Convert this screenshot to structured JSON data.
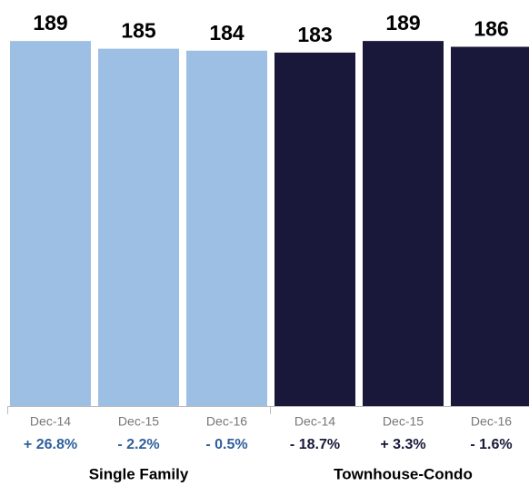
{
  "chart_data": {
    "type": "bar",
    "categories": [
      "Dec-14",
      "Dec-15",
      "Dec-16"
    ],
    "ylim": [
      0,
      190
    ],
    "series": [
      {
        "name": "Single Family",
        "color": "#9dbfe4",
        "values": [
          189,
          185,
          184
        ],
        "changes": [
          "+ 26.8%",
          "- 2.2%",
          "- 0.5%"
        ],
        "change_color": "#2d5f9c"
      },
      {
        "name": "Townhouse-Condo",
        "color": "#19183a",
        "values": [
          183,
          189,
          186
        ],
        "changes": [
          "- 18.7%",
          "+ 3.3%",
          "- 1.6%"
        ],
        "change_color": "#19183a"
      }
    ]
  }
}
